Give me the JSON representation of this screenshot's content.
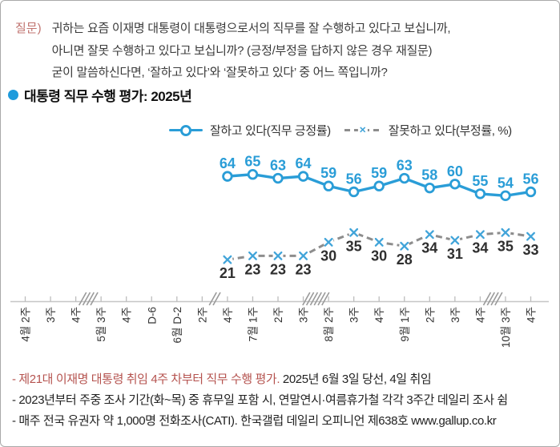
{
  "page": {
    "title": "대통령 직무 수행 평가: 2025년"
  },
  "question": {
    "label": "질문)",
    "lines": [
      "귀하는 요즘 이재명 대통령이 대통령으로서의 직무를 잘 수행하고 있다고 보십니까,",
      "아니면 잘못 수행하고 있다고 보십니까? (긍정/부정을 답하지 않은 경우 재질문)",
      "굳이 말씀하신다면, ‘잘하고 있다’와 ‘잘못하고 있다’ 중 어느 쪽입니까?"
    ]
  },
  "icons": {
    "legend_x_glyph": "×"
  },
  "colors": {
    "accent_blue": "#2a9dd7",
    "marker_blue": "#41a4d9",
    "negative_line_gray": "#8d8d8d",
    "negative_label_dark": "#2f2f2f",
    "question_label_red": "#c0736f",
    "footnote_red": "#b5534f",
    "axis_gray": "#c6c6c6"
  },
  "chart_data": {
    "type": "line",
    "unit": "%",
    "title": "대통령 직무 수행 평가: 2025년",
    "legend_position": "top",
    "grid": false,
    "ylim": [
      0,
      100
    ],
    "categories": [
      "4월 2주",
      "3주",
      "4주",
      "5월 3주",
      "4주",
      "D-6",
      "6월 D-2",
      "2주",
      "4주",
      "7월 1주",
      "2주",
      "3주",
      "8월 2주",
      "3주",
      "4주",
      "9월 1주",
      "2주",
      "3주",
      "4주",
      "10월 3주",
      "4주"
    ],
    "series": [
      {
        "name": "잘하고 있다(직무 긍정률)",
        "style": "solid",
        "marker": "circle",
        "color": "#2a9dd7",
        "values": [
          null,
          null,
          null,
          null,
          null,
          null,
          null,
          null,
          64,
          65,
          63,
          64,
          59,
          56,
          59,
          63,
          58,
          60,
          55,
          54,
          56
        ]
      },
      {
        "name": "잘못하고 있다(부정률, %)",
        "style": "dashed",
        "marker": "x",
        "color": "#8d8d8d",
        "marker_color": "#41a4d9",
        "values": [
          null,
          null,
          null,
          null,
          null,
          null,
          null,
          null,
          21,
          23,
          23,
          23,
          30,
          35,
          30,
          28,
          34,
          31,
          34,
          35,
          33
        ]
      }
    ],
    "axis_breaks": [
      {
        "after_index": 2,
        "slashes": 4
      },
      {
        "after_index": 7,
        "slashes": 2
      },
      {
        "after_index": 11,
        "slashes": 6
      },
      {
        "after_index": 18,
        "slashes": 4
      }
    ]
  },
  "footnotes": {
    "line1_red": "- 제21대 이재명 대통령 취임 4주 차부터 직무 수행 평가.",
    "line1_black": " 2025년 6월 3일 당선, 4일 취임",
    "line2": "- 2023년부터 주중 조사 기간(화~목) 중 휴무일 포함 시, 연말연시·여름휴가철 각각 3주간 데일리 조사 쉼",
    "line3": "- 매주 전국 유권자 약 1,000명 전화조사(CATI). 한국갤럽 데일리 오피니언 제638호 www.gallup.co.kr"
  }
}
